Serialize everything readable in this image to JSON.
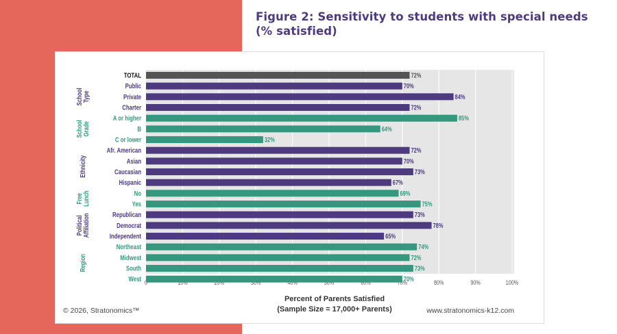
{
  "title": "Figure 2: Sensitivity to students with special needs",
  "subtitle": "(% satisfied)",
  "footer": {
    "copyright": "© 2026, Stratonomics™",
    "url": "www.stratonomics-k12.com"
  },
  "colors": {
    "total": "#555555",
    "purple": "#4d3a7f",
    "green": "#35977d",
    "panel": "#e5665a",
    "plot_bg": "#e6e6e6"
  },
  "chart_data": {
    "type": "bar",
    "orientation": "horizontal",
    "xlabel": "Percent of Parents Satisfied",
    "xlabel_sub": "(Sample Size = 17,000+ Parents)",
    "xlim": [
      0,
      100
    ],
    "grid": true,
    "xticks": [
      "0",
      "10%",
      "20%",
      "30%",
      "40%",
      "50%",
      "60%",
      "70%",
      "80%",
      "90%",
      "100%"
    ],
    "groups": [
      {
        "name": "",
        "color": "total",
        "categories": [
          "TOTAL"
        ],
        "values": [
          72
        ]
      },
      {
        "name": "School Type",
        "color": "purple",
        "categories": [
          "Public",
          "Private",
          "Charter"
        ],
        "values": [
          70,
          84,
          72
        ]
      },
      {
        "name": "School Grade",
        "color": "green",
        "categories": [
          "A or higher",
          "B",
          "C or lower"
        ],
        "values": [
          85,
          64,
          32
        ]
      },
      {
        "name": "Ethnicity",
        "color": "purple",
        "categories": [
          "Afr. American",
          "Asian",
          "Caucasian",
          "Hispanic"
        ],
        "values": [
          72,
          70,
          73,
          67
        ]
      },
      {
        "name": "Free Lunch",
        "color": "green",
        "categories": [
          "No",
          "Yes"
        ],
        "values": [
          69,
          75
        ]
      },
      {
        "name": "Political Affiliation",
        "color": "purple",
        "categories": [
          "Republican",
          "Democrat",
          "Independent"
        ],
        "values": [
          73,
          78,
          65
        ]
      },
      {
        "name": "Region",
        "color": "green",
        "categories": [
          "Northeast",
          "Midwest",
          "South",
          "West"
        ],
        "values": [
          74,
          72,
          73,
          70
        ]
      }
    ]
  }
}
